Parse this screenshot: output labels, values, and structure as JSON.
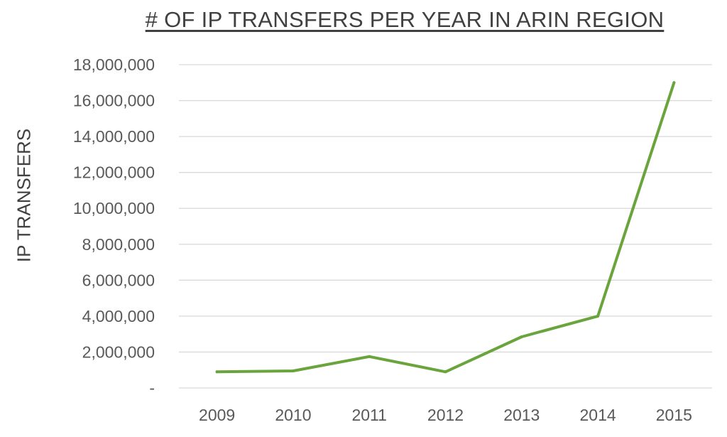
{
  "chart_data": {
    "type": "line",
    "title": "# OF IP TRANSFERS PER YEAR IN ARIN REGION",
    "xlabel": "",
    "ylabel": "IP TRANSFERS",
    "categories": [
      "2009",
      "2010",
      "2011",
      "2012",
      "2013",
      "2014",
      "2015"
    ],
    "series": [
      {
        "values": [
          900000,
          950000,
          1750000,
          900000,
          2850000,
          4000000,
          17000000
        ]
      }
    ],
    "ylim": [
      0,
      18000000
    ],
    "yticks": [
      0,
      2000000,
      4000000,
      6000000,
      8000000,
      10000000,
      12000000,
      14000000,
      16000000,
      18000000
    ],
    "ytick_labels": [
      "-",
      "2,000,000",
      "4,000,000",
      "6,000,000",
      "8,000,000",
      "10,000,000",
      "12,000,000",
      "14,000,000",
      "16,000,000",
      "18,000,000"
    ],
    "grid": true,
    "legend": "none",
    "colors": {
      "line": "#6aa43c",
      "grid": "#d9d9d9",
      "text": "#595959"
    }
  }
}
